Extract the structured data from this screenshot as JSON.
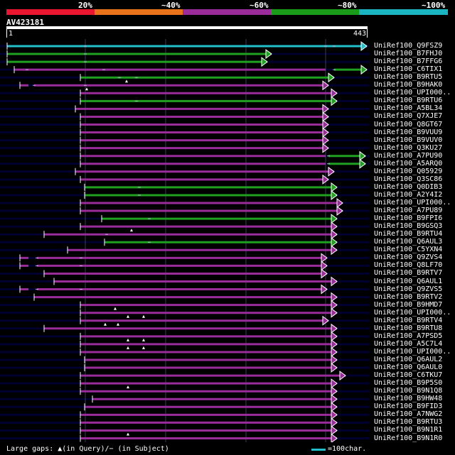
{
  "scale": {
    "labels": [
      "20%",
      "~40%",
      "~60%",
      "~80%",
      "~100%"
    ],
    "colors": [
      "#e8162e",
      "#e8731a",
      "#9a2c9a",
      "#1a9c1a",
      "#1ab5c0"
    ]
  },
  "query": {
    "id": "AV423181",
    "start": "1",
    "end": "443"
  },
  "colors": {
    "row_bg": "#000030",
    "grid": "#3a3a5a",
    "hit_cyan": "#22c0cc",
    "hit_green": "#1fa01f",
    "hit_purple": "#9a2c9a",
    "gap_grey": "#b0b0c8"
  },
  "hits": [
    {
      "label": "UniRef100_Q9FSZ9"
    },
    {
      "label": "UniRef100_B7FHJ0"
    },
    {
      "label": "UniRef100_B7FFG6"
    },
    {
      "label": "UniRef100_C6TIX1"
    },
    {
      "label": "UniRef100_B9RTU5"
    },
    {
      "label": "UniRef100_B9HAK0"
    },
    {
      "label": "UniRef100_UPI000.."
    },
    {
      "label": "UniRef100_B9RTU6"
    },
    {
      "label": "UniRef100_A5BL34"
    },
    {
      "label": "UniRef100_Q7XJE7"
    },
    {
      "label": "UniRef100_Q8GT67"
    },
    {
      "label": "UniRef100_B9VUU9"
    },
    {
      "label": "UniRef100_B9VUV0"
    },
    {
      "label": "UniRef100_Q3KU27"
    },
    {
      "label": "UniRef100_A7PU90"
    },
    {
      "label": "UniRef100_A5ARQ0"
    },
    {
      "label": "UniRef100_Q05929"
    },
    {
      "label": "UniRef100_Q3SC86"
    },
    {
      "label": "UniRef100_Q0DIB3"
    },
    {
      "label": "UniRef100_A2Y4I2"
    },
    {
      "label": "UniRef100_UPI000.."
    },
    {
      "label": "UniRef100_A7PU89"
    },
    {
      "label": "UniRef100_B9FPI6"
    },
    {
      "label": "UniRef100_B9GSQ3"
    },
    {
      "label": "UniRef100_B9RTU4"
    },
    {
      "label": "UniRef100_Q6AUL3"
    },
    {
      "label": "UniRef100_C5YXN4"
    },
    {
      "label": "UniRef100_Q9ZVS4"
    },
    {
      "label": "UniRef100_Q8LF70"
    },
    {
      "label": "UniRef100_B9RTV7"
    },
    {
      "label": "UniRef100_Q6AUL1"
    },
    {
      "label": "UniRef100_Q9ZVS5"
    },
    {
      "label": "UniRef100_B9RTV2"
    },
    {
      "label": "UniRef100_B9HMD7"
    },
    {
      "label": "UniRef100_UPI000.."
    },
    {
      "label": "UniRef100_B9RTV4"
    },
    {
      "label": "UniRef100_B9RTU8"
    },
    {
      "label": "UniRef100_A7PSD5"
    },
    {
      "label": "UniRef100_A5C7L4"
    },
    {
      "label": "UniRef100_UPI000.."
    },
    {
      "label": "UniRef100_Q6AUL2"
    },
    {
      "label": "UniRef100_Q6AUL0"
    },
    {
      "label": "UniRef100_C6TKU7"
    },
    {
      "label": "UniRef100_B9P5S0"
    },
    {
      "label": "UniRef100_B9N1Q8"
    },
    {
      "label": "UniRef100_B9HW48"
    },
    {
      "label": "UniRef100_B9FID3"
    },
    {
      "label": "UniRef100_A7NWG2"
    },
    {
      "label": "UniRef100_B9RTU3"
    },
    {
      "label": "UniRef100_B9N1R1"
    },
    {
      "label": "UniRef100_B9N1R0"
    }
  ],
  "footer": {
    "text": "Large gaps: ▲(in Query)/− (in Subject)",
    "legend": "=100char."
  }
}
